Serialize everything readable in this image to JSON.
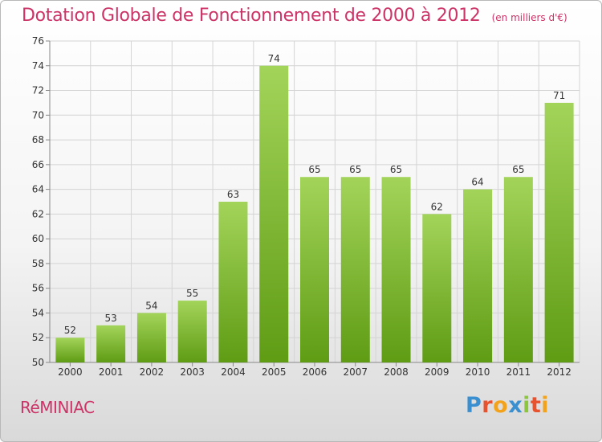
{
  "header": {
    "title": "Dotation Globale de Fonctionnement de 2000 à 2012",
    "subtitle": "(en milliers d'€)"
  },
  "footer": {
    "commune": "RéMINIAC",
    "logo_text": "Proxiti",
    "logo_letters": [
      {
        "ch": "P",
        "color": "#3a8fd0"
      },
      {
        "ch": "r",
        "color": "#e8532f"
      },
      {
        "ch": "o",
        "color": "#f2a31b"
      },
      {
        "ch": "x",
        "color": "#3a8fd0"
      },
      {
        "ch": "i",
        "color": "#8cc63f"
      },
      {
        "ch": "t",
        "color": "#e8532f"
      },
      {
        "ch": "i",
        "color": "#f2a31b"
      }
    ]
  },
  "colors": {
    "bar_top": "#a3d45a",
    "bar_bottom": "#5f9c14",
    "grid": "#d4d4d4",
    "title": "#cc3366"
  },
  "chart_data": {
    "type": "bar",
    "title": "Dotation Globale de Fonctionnement de 2000 à 2012",
    "subtitle": "(en milliers d'€)",
    "categories": [
      "2000",
      "2001",
      "2002",
      "2003",
      "2004",
      "2005",
      "2006",
      "2007",
      "2008",
      "2009",
      "2010",
      "2011",
      "2012"
    ],
    "values": [
      52,
      53,
      54,
      55,
      63,
      74,
      65,
      65,
      65,
      62,
      64,
      65,
      71
    ],
    "ylim": [
      50,
      76
    ],
    "yticks": [
      50,
      52,
      54,
      56,
      58,
      60,
      62,
      64,
      66,
      68,
      70,
      72,
      74,
      76
    ],
    "grid": true,
    "data_labels": true,
    "legend": "none"
  }
}
